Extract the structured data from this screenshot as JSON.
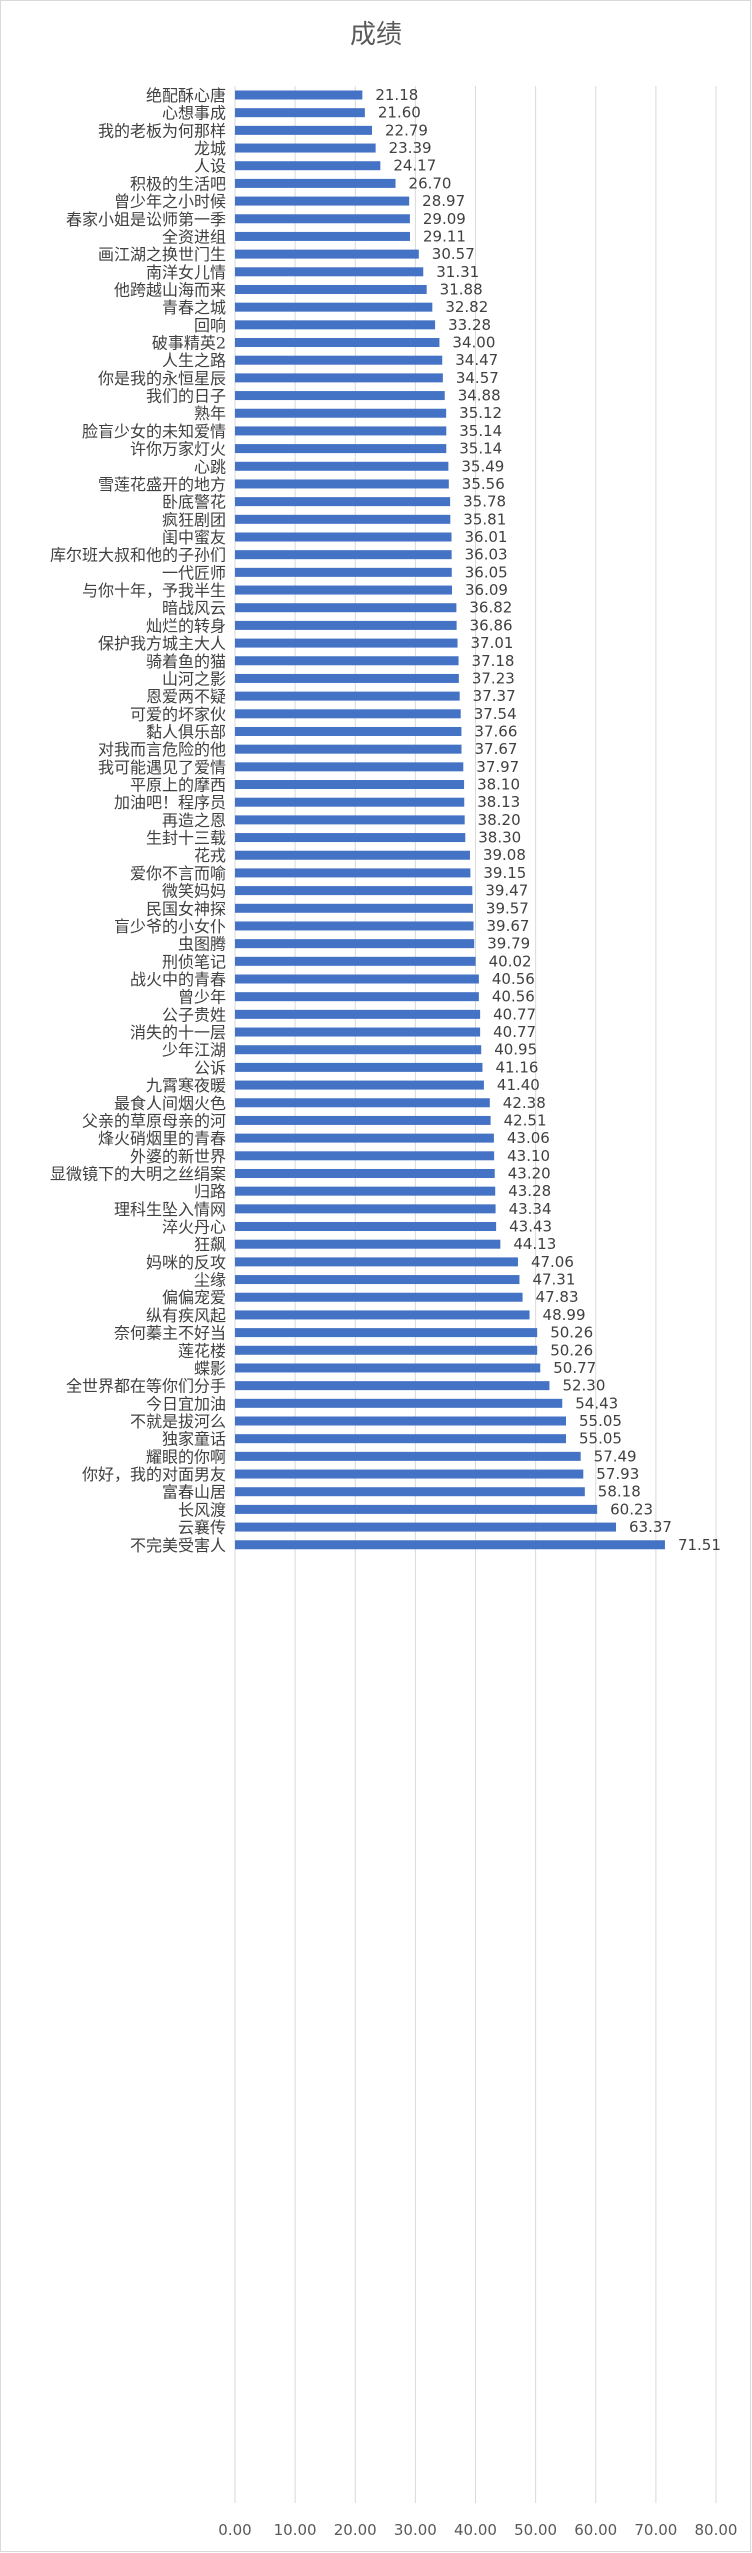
{
  "chart_data": {
    "type": "bar",
    "orientation": "horizontal",
    "title": "成绩",
    "xlabel": "",
    "ylabel": "",
    "xlim": [
      0,
      80
    ],
    "x_ticks": [
      "0.00",
      "10.00",
      "20.00",
      "30.00",
      "40.00",
      "50.00",
      "60.00",
      "70.00",
      "80.00"
    ],
    "grid": "vertical gridlines",
    "bar_color": "#4472c4",
    "categories": [
      "绝配酥心唐",
      "心想事成",
      "我的老板为何那样",
      "龙城",
      "人设",
      "积极的生活吧",
      "曾少年之小时候",
      "春家小姐是讼师第一季",
      "全资进组",
      "画江湖之换世门生",
      "南洋女儿情",
      "他跨越山海而来",
      "青春之城",
      "回响",
      "破事精英2",
      "人生之路",
      "你是我的永恒星辰",
      "我们的日子",
      "熟年",
      "脸盲少女的未知爱情",
      "许你万家灯火",
      "心跳",
      "雪莲花盛开的地方",
      "卧底警花",
      "疯狂剧团",
      "闺中蜜友",
      "库尔班大叔和他的子孙们",
      "一代匠师",
      "与你十年，予我半生",
      "暗战风云",
      "灿烂的转身",
      "保护我方城主大人",
      "骑着鱼的猫",
      "山河之影",
      "恩爱两不疑",
      "可爱的坏家伙",
      "黏人俱乐部",
      "对我而言危险的他",
      "我可能遇见了爱情",
      "平原上的摩西",
      "加油吧！程序员",
      "再造之恩",
      "生封十三载",
      "花戎",
      "爱你不言而喻",
      "微笑妈妈",
      "民国女神探",
      "盲少爷的小女仆",
      "虫图腾",
      "刑侦笔记",
      "战火中的青春",
      "曾少年",
      "公子贵姓",
      "消失的十一层",
      "少年江湖",
      "公诉",
      "九霄寒夜暖",
      "最食人间烟火色",
      "父亲的草原母亲的河",
      "烽火硝烟里的青春",
      "外婆的新世界",
      "显微镜下的大明之丝绢案",
      "归路",
      "理科生坠入情网",
      "淬火丹心",
      "狂飙",
      "妈咪的反攻",
      "尘缘",
      "偏偏宠爱",
      "纵有疾风起",
      "奈何蓁主不好当",
      "莲花楼",
      "蝶影",
      "全世界都在等你们分手",
      "今日宜加油",
      "不就是拔河么",
      "独家童话",
      "耀眼的你啊",
      "你好，我的对面男友",
      "富春山居",
      "长风渡",
      "云襄传",
      "不完美受害人"
    ],
    "values": [
      21.18,
      21.6,
      22.79,
      23.39,
      24.17,
      26.7,
      28.97,
      29.09,
      29.11,
      30.57,
      31.31,
      31.88,
      32.82,
      33.28,
      34.0,
      34.47,
      34.57,
      34.88,
      35.12,
      35.14,
      35.14,
      35.49,
      35.56,
      35.78,
      35.81,
      36.01,
      36.03,
      36.05,
      36.09,
      36.82,
      36.86,
      37.01,
      37.18,
      37.23,
      37.37,
      37.54,
      37.66,
      37.67,
      37.97,
      38.1,
      38.13,
      38.2,
      38.3,
      39.08,
      39.15,
      39.47,
      39.57,
      39.67,
      39.79,
      40.02,
      40.56,
      40.56,
      40.77,
      40.77,
      40.95,
      41.16,
      41.4,
      42.38,
      42.51,
      43.06,
      43.1,
      43.2,
      43.28,
      43.34,
      43.43,
      44.13,
      47.06,
      47.31,
      47.83,
      48.99,
      50.26,
      50.26,
      50.77,
      52.3,
      54.43,
      55.05,
      55.05,
      57.49,
      57.93,
      58.18,
      60.23,
      63.37,
      71.51
    ],
    "data_labels": [
      "21.18",
      "21.60",
      "22.79",
      "23.39",
      "24.17",
      "26.70",
      "28.97",
      "29.09",
      "29.11",
      "30.57",
      "31.31",
      "31.88",
      "32.82",
      "33.28",
      "34.00",
      "34.47",
      "34.57",
      "34.88",
      "35.12",
      "35.14",
      "35.14",
      "35.49",
      "35.56",
      "35.78",
      "35.81",
      "36.01",
      "36.03",
      "36.05",
      "36.09",
      "36.82",
      "36.86",
      "37.01",
      "37.18",
      "37.23",
      "37.37",
      "37.54",
      "37.66",
      "37.67",
      "37.97",
      "38.10",
      "38.13",
      "38.20",
      "38.30",
      "39.08",
      "39.15",
      "39.47",
      "39.57",
      "39.67",
      "39.79",
      "40.02",
      "40.56",
      "40.56",
      "40.77",
      "40.77",
      "40.95",
      "41.16",
      "41.40",
      "42.38",
      "42.51",
      "43.06",
      "43.10",
      "43.20",
      "43.28",
      "43.34",
      "43.43",
      "44.13",
      "47.06",
      "47.31",
      "47.83",
      "48.99",
      "50.26",
      "50.26",
      "50.77",
      "52.30",
      "54.43",
      "55.05",
      "55.05",
      "57.49",
      "57.93",
      "58.18",
      "60.23",
      "63.37",
      "71.51"
    ]
  }
}
